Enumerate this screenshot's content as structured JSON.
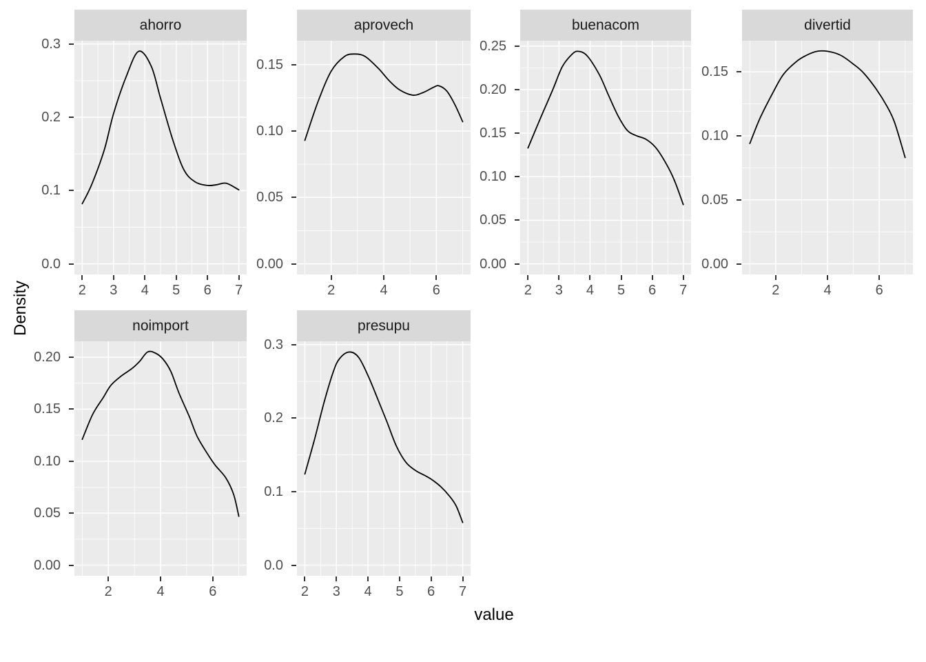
{
  "figure": {
    "background": "#ffffff",
    "panel_background": "#ebebeb",
    "strip_background": "#d9d9d9",
    "grid_color": "#ffffff",
    "curve_color": "#000000",
    "tick_mark_color": "#333333",
    "tick_label_color": "#4d4d4d",
    "strip_text_color": "#1a1a1a"
  },
  "chart_data": {
    "type": "line",
    "variant": "faceted-kernel-density",
    "title": "",
    "xlabel": "value",
    "ylabel": "Density",
    "grid": true,
    "legend": false,
    "facets": [
      {
        "label": "ahorro",
        "x_range": [
          1.75,
          7.25
        ],
        "y_range": [
          -0.0145,
          0.3045
        ],
        "x_ticks": [
          2,
          3,
          4,
          5,
          6,
          7
        ],
        "x_minor": [
          2.5,
          3.5,
          4.5,
          5.5,
          6.5
        ],
        "y_ticks": [
          0.0,
          0.1,
          0.2,
          0.3
        ],
        "y_tick_labels": [
          "0.0",
          "0.1",
          "0.2",
          "0.3"
        ],
        "y_minor": [
          0.05,
          0.15,
          0.25
        ],
        "points": [
          [
            2,
            0.082
          ],
          [
            2.3,
            0.108
          ],
          [
            2.7,
            0.155
          ],
          [
            3.0,
            0.205
          ],
          [
            3.4,
            0.255
          ],
          [
            3.8,
            0.29
          ],
          [
            4.2,
            0.27
          ],
          [
            4.5,
            0.226
          ],
          [
            4.9,
            0.168
          ],
          [
            5.25,
            0.128
          ],
          [
            5.6,
            0.112
          ],
          [
            6.0,
            0.107
          ],
          [
            6.3,
            0.108
          ],
          [
            6.6,
            0.11
          ],
          [
            7.0,
            0.101
          ]
        ]
      },
      {
        "label": "aprovech",
        "x_range": [
          0.7,
          7.3
        ],
        "y_range": [
          -0.008,
          0.168
        ],
        "x_ticks": [
          2,
          4,
          6
        ],
        "x_minor": [
          1,
          3,
          5,
          7
        ],
        "y_ticks": [
          0.0,
          0.05,
          0.1,
          0.15
        ],
        "y_tick_labels": [
          "0.00",
          "0.05",
          "0.10",
          "0.15"
        ],
        "y_minor": [
          0.025,
          0.075,
          0.125
        ],
        "points": [
          [
            1,
            0.093
          ],
          [
            1.5,
            0.122
          ],
          [
            2,
            0.145
          ],
          [
            2.5,
            0.156
          ],
          [
            2.9,
            0.158
          ],
          [
            3.3,
            0.156
          ],
          [
            3.8,
            0.147
          ],
          [
            4.2,
            0.138
          ],
          [
            4.6,
            0.131
          ],
          [
            5.1,
            0.127
          ],
          [
            5.5,
            0.129
          ],
          [
            5.9,
            0.133
          ],
          [
            6.1,
            0.134
          ],
          [
            6.4,
            0.13
          ],
          [
            6.7,
            0.12
          ],
          [
            7,
            0.107
          ]
        ]
      },
      {
        "label": "buenacom",
        "x_range": [
          1.75,
          7.25
        ],
        "y_range": [
          -0.0122,
          0.2562
        ],
        "x_ticks": [
          2,
          3,
          4,
          5,
          6,
          7
        ],
        "x_minor": [
          2.5,
          3.5,
          4.5,
          5.5,
          6.5
        ],
        "y_ticks": [
          0.0,
          0.05,
          0.1,
          0.15,
          0.2,
          0.25
        ],
        "y_tick_labels": [
          "0.00",
          "0.05",
          "0.10",
          "0.15",
          "0.20",
          "0.25"
        ],
        "y_minor": [
          0.025,
          0.075,
          0.125,
          0.175,
          0.225
        ],
        "points": [
          [
            2,
            0.133
          ],
          [
            2.4,
            0.167
          ],
          [
            2.8,
            0.2
          ],
          [
            3.1,
            0.226
          ],
          [
            3.4,
            0.24
          ],
          [
            3.6,
            0.244
          ],
          [
            3.9,
            0.239
          ],
          [
            4.3,
            0.217
          ],
          [
            4.6,
            0.193
          ],
          [
            4.9,
            0.17
          ],
          [
            5.2,
            0.153
          ],
          [
            5.5,
            0.147
          ],
          [
            5.8,
            0.143
          ],
          [
            6.1,
            0.134
          ],
          [
            6.4,
            0.118
          ],
          [
            6.7,
            0.097
          ],
          [
            7,
            0.068
          ]
        ]
      },
      {
        "label": "divertid",
        "x_range": [
          0.7,
          7.3
        ],
        "y_range": [
          -0.0083,
          0.1743
        ],
        "x_ticks": [
          2,
          4,
          6
        ],
        "x_minor": [
          1,
          3,
          5,
          7
        ],
        "y_ticks": [
          0.0,
          0.05,
          0.1,
          0.15
        ],
        "y_tick_labels": [
          "0.00",
          "0.05",
          "0.10",
          "0.15"
        ],
        "y_minor": [
          0.025,
          0.075,
          0.125
        ],
        "points": [
          [
            1,
            0.094
          ],
          [
            1.4,
            0.114
          ],
          [
            1.9,
            0.134
          ],
          [
            2.3,
            0.148
          ],
          [
            2.8,
            0.158
          ],
          [
            3.2,
            0.163
          ],
          [
            3.6,
            0.166
          ],
          [
            4.0,
            0.166
          ],
          [
            4.5,
            0.163
          ],
          [
            5.0,
            0.156
          ],
          [
            5.4,
            0.149
          ],
          [
            5.9,
            0.136
          ],
          [
            6.3,
            0.123
          ],
          [
            6.6,
            0.11
          ],
          [
            7,
            0.083
          ]
        ]
      },
      {
        "label": "noimport",
        "x_range": [
          0.7,
          7.3
        ],
        "y_range": [
          -0.01025,
          0.21525
        ],
        "x_ticks": [
          2,
          4,
          6
        ],
        "x_minor": [
          1,
          3,
          5,
          7
        ],
        "y_ticks": [
          0.0,
          0.05,
          0.1,
          0.15,
          0.2
        ],
        "y_tick_labels": [
          "0.00",
          "0.05",
          "0.10",
          "0.15",
          "0.20"
        ],
        "y_minor": [
          0.025,
          0.075,
          0.125,
          0.175
        ],
        "points": [
          [
            1,
            0.121
          ],
          [
            1.4,
            0.145
          ],
          [
            1.8,
            0.161
          ],
          [
            2.1,
            0.173
          ],
          [
            2.5,
            0.182
          ],
          [
            2.9,
            0.189
          ],
          [
            3.2,
            0.196
          ],
          [
            3.5,
            0.205
          ],
          [
            3.8,
            0.204
          ],
          [
            4.1,
            0.198
          ],
          [
            4.4,
            0.186
          ],
          [
            4.7,
            0.166
          ],
          [
            5.1,
            0.143
          ],
          [
            5.4,
            0.124
          ],
          [
            5.8,
            0.107
          ],
          [
            6.1,
            0.096
          ],
          [
            6.5,
            0.084
          ],
          [
            6.8,
            0.068
          ],
          [
            7,
            0.047
          ]
        ]
      },
      {
        "label": "presupu",
        "x_range": [
          1.75,
          7.25
        ],
        "y_range": [
          -0.0145,
          0.3045
        ],
        "x_ticks": [
          2,
          3,
          4,
          5,
          6,
          7
        ],
        "x_minor": [
          2.5,
          3.5,
          4.5,
          5.5,
          6.5
        ],
        "y_ticks": [
          0.0,
          0.1,
          0.2,
          0.3
        ],
        "y_tick_labels": [
          "0.0",
          "0.1",
          "0.2",
          "0.3"
        ],
        "y_minor": [
          0.05,
          0.15,
          0.25
        ],
        "points": [
          [
            2,
            0.124
          ],
          [
            2.3,
            0.17
          ],
          [
            2.6,
            0.22
          ],
          [
            2.9,
            0.263
          ],
          [
            3.1,
            0.281
          ],
          [
            3.4,
            0.29
          ],
          [
            3.7,
            0.283
          ],
          [
            4.0,
            0.258
          ],
          [
            4.3,
            0.227
          ],
          [
            4.6,
            0.195
          ],
          [
            4.9,
            0.162
          ],
          [
            5.2,
            0.14
          ],
          [
            5.5,
            0.129
          ],
          [
            5.8,
            0.122
          ],
          [
            6.0,
            0.117
          ],
          [
            6.3,
            0.107
          ],
          [
            6.6,
            0.093
          ],
          [
            6.8,
            0.08
          ],
          [
            7,
            0.058
          ]
        ]
      }
    ]
  }
}
